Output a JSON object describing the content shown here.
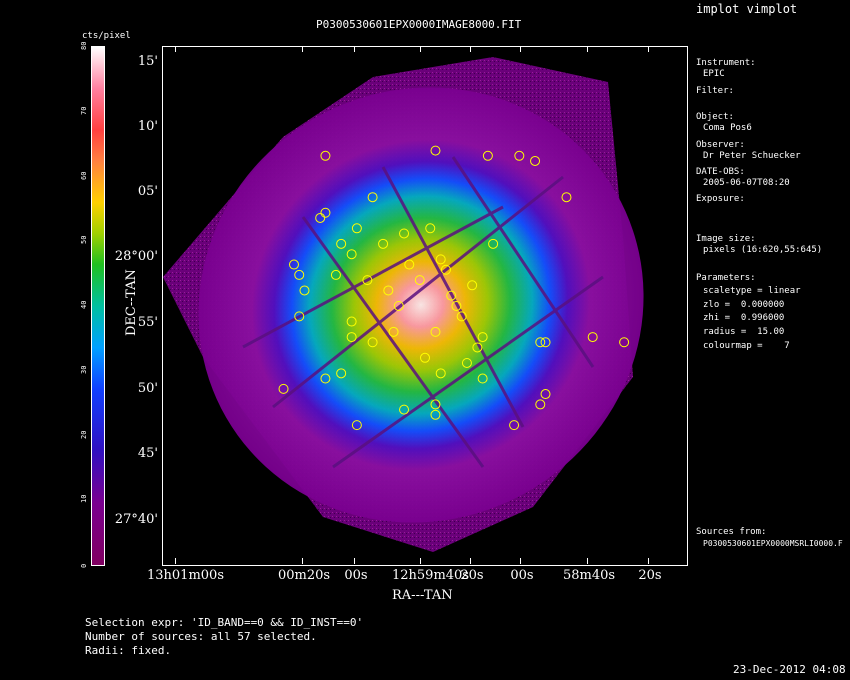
{
  "window": {
    "title": "implot vimplot",
    "timestamp": "23-Dec-2012 04:08"
  },
  "plot": {
    "title": "P0300530601EPX0000IMAGE8000.FIT",
    "xlabel": "RA---TAN",
    "ylabel": "DEC--TAN",
    "y_ticks": [
      "15'",
      "10'",
      "05'",
      "28°00'",
      "55'",
      "50'",
      "45'",
      "27°40'"
    ],
    "x_ticks": [
      "13h01m00s",
      "00m20s",
      "00s",
      "12h59m40s",
      "20s",
      "00s",
      "58m40s",
      "20s"
    ]
  },
  "colorbar": {
    "label": "cts/pixel",
    "ticks": [
      "0",
      "10",
      "20",
      "30",
      "40",
      "50",
      "60",
      "70",
      "80"
    ]
  },
  "info_panel": {
    "instrument_label": "Instrument:",
    "instrument_value": "EPIC",
    "filter_label": "Filter:",
    "object_label": "Object:",
    "object_value": "Coma Pos6",
    "observer_label": "Observer:",
    "observer_value": "Dr Peter Schuecker",
    "date_label": "DATE-OBS:",
    "date_value": "2005-06-07T08:20",
    "exposure_label": "Exposure:",
    "image_size_label": "Image size:",
    "image_size_value": "pixels (16:620,55:645)",
    "parameters_label": "Parameters:",
    "params": [
      "scaletype = linear",
      "zlo =  0.000000",
      "zhi =  0.996000",
      "radius =  15.00",
      "colourmap =    7"
    ],
    "sources_label": "Sources from:",
    "sources_value": "P0300530601EPX0000MSRLI0000.F"
  },
  "footer": {
    "line1": "Selection expr: 'ID_BAND==0 && ID_INST==0'",
    "line2": "Number of sources: all 57 selected.",
    "line3": "Radii: fixed."
  },
  "colors": {
    "background": "#000000",
    "text": "#ffffff",
    "source_circle": "#ffff00"
  },
  "sources": [
    [
      0.31,
      0.21
    ],
    [
      0.52,
      0.2
    ],
    [
      0.62,
      0.21
    ],
    [
      0.68,
      0.21
    ],
    [
      0.71,
      0.22
    ],
    [
      0.77,
      0.29
    ],
    [
      0.4,
      0.29
    ],
    [
      0.31,
      0.32
    ],
    [
      0.37,
      0.35
    ],
    [
      0.34,
      0.38
    ],
    [
      0.36,
      0.4
    ],
    [
      0.25,
      0.42
    ],
    [
      0.26,
      0.44
    ],
    [
      0.33,
      0.44
    ],
    [
      0.39,
      0.45
    ],
    [
      0.27,
      0.47
    ],
    [
      0.26,
      0.52
    ],
    [
      0.36,
      0.53
    ],
    [
      0.54,
      0.43
    ],
    [
      0.53,
      0.41
    ],
    [
      0.59,
      0.46
    ],
    [
      0.56,
      0.5
    ],
    [
      0.43,
      0.47
    ],
    [
      0.47,
      0.42
    ],
    [
      0.49,
      0.45
    ],
    [
      0.61,
      0.56
    ],
    [
      0.6,
      0.58
    ],
    [
      0.36,
      0.56
    ],
    [
      0.72,
      0.57
    ],
    [
      0.73,
      0.57
    ],
    [
      0.82,
      0.56
    ],
    [
      0.88,
      0.57
    ],
    [
      0.34,
      0.63
    ],
    [
      0.31,
      0.64
    ],
    [
      0.53,
      0.63
    ],
    [
      0.61,
      0.64
    ],
    [
      0.23,
      0.66
    ],
    [
      0.46,
      0.7
    ],
    [
      0.52,
      0.69
    ],
    [
      0.52,
      0.71
    ],
    [
      0.67,
      0.73
    ],
    [
      0.37,
      0.73
    ],
    [
      0.73,
      0.67
    ],
    [
      0.72,
      0.69
    ],
    [
      0.44,
      0.55
    ],
    [
      0.52,
      0.55
    ],
    [
      0.4,
      0.57
    ],
    [
      0.5,
      0.6
    ],
    [
      0.58,
      0.61
    ],
    [
      0.45,
      0.5
    ],
    [
      0.55,
      0.48
    ],
    [
      0.3,
      0.33
    ],
    [
      0.42,
      0.38
    ],
    [
      0.46,
      0.36
    ],
    [
      0.51,
      0.35
    ],
    [
      0.57,
      0.52
    ],
    [
      0.63,
      0.38
    ]
  ]
}
